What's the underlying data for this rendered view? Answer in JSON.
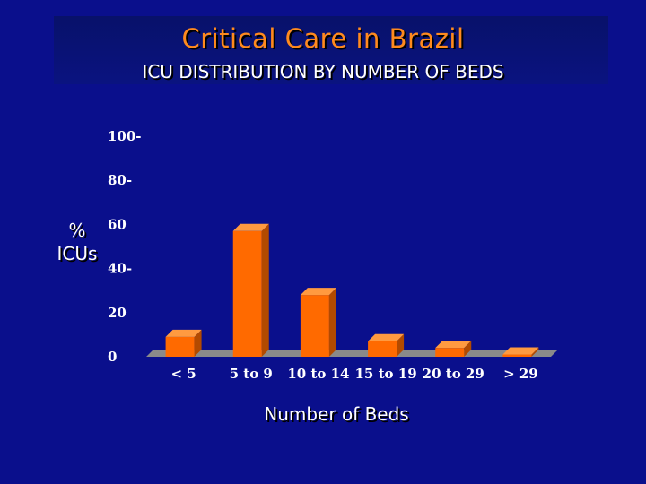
{
  "slide": {
    "title": "Critical Care in Brazil",
    "subtitle": "ICU DISTRIBUTION BY NUMBER OF BEDS"
  },
  "chart_data": {
    "type": "bar",
    "title": "ICU DISTRIBUTION BY NUMBER OF BEDS",
    "xlabel": "Number of Beds",
    "ylabel": "% ICUs",
    "ylabel_lines": [
      "%",
      "ICUs"
    ],
    "categories": [
      "< 5",
      "5 to 9",
      "10 to 14",
      "15 to 19",
      "20 to 29",
      "> 29"
    ],
    "values": [
      9,
      57,
      28,
      7,
      4,
      1
    ],
    "yticks": [
      {
        "value": 0,
        "label": "0"
      },
      {
        "value": 20,
        "label": "20"
      },
      {
        "value": 40,
        "label": "40-"
      },
      {
        "value": 60,
        "label": "60"
      },
      {
        "value": 80,
        "label": "80-"
      },
      {
        "value": 100,
        "label": "100-"
      }
    ],
    "ylim": [
      0,
      100
    ],
    "grid": false,
    "bar_color": "#ff6a00",
    "bar_top_color": "#ff9a40",
    "bar_side_color": "#b34a00",
    "floor_color": "#8a8a8a",
    "background": "#0a0f8c"
  }
}
